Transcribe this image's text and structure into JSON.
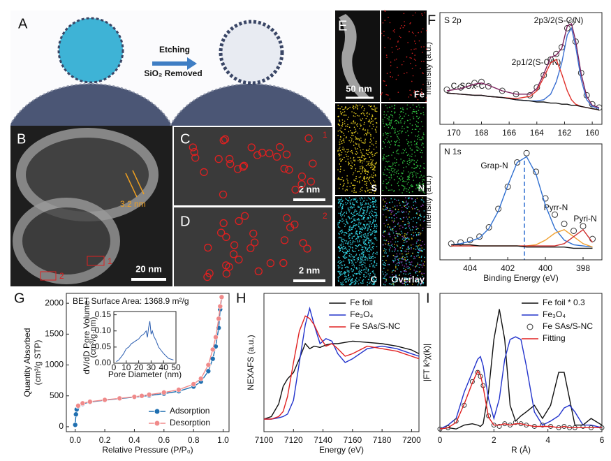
{
  "panels": {
    "A": {
      "label": "A",
      "arrow_top": "Etching",
      "arrow_bottom": "SiO₂ Removed"
    },
    "B": {
      "label": "B",
      "measure": "3.2 nm",
      "scale": "20 nm",
      "region_1": "1",
      "region_2": "2"
    },
    "C": {
      "label": "C",
      "region": "1",
      "scale": "2 nm"
    },
    "D": {
      "label": "D",
      "region": "2",
      "scale": "2 nm"
    },
    "E": {
      "label": "E",
      "scale": "50 nm",
      "maps": [
        "Fe",
        "S",
        "N",
        "C",
        "Overlay"
      ]
    }
  },
  "chart_data": [
    {
      "type": "line",
      "panel_label": "F",
      "y_label": "Intensity (a.u.)",
      "annotations": [
        "S 2p",
        "2p3/2(S-C/N)",
        "2p1/2(S-C/N)",
        "C-SOx-C"
      ],
      "xlim": [
        171,
        159.3
      ],
      "xticks": [
        170,
        168,
        166,
        164,
        162,
        160
      ],
      "ylim": [
        0,
        1
      ],
      "x": [
        170.5,
        169.5,
        168.5,
        168,
        167.5,
        166.5,
        165.5,
        164.5,
        164,
        163.5,
        163,
        162.6,
        162.2,
        161.8,
        161.5,
        161.2,
        160.8,
        160.4,
        160,
        159.5
      ],
      "series": [
        {
          "color": "#333333",
          "style": "open-markers",
          "values": [
            0.31,
            0.33,
            0.37,
            0.38,
            0.34,
            0.3,
            0.27,
            0.26,
            0.33,
            0.44,
            0.58,
            0.63,
            0.69,
            0.86,
            0.91,
            0.74,
            0.46,
            0.26,
            0.18,
            0.15
          ]
        },
        {
          "color": "#7a1f5a",
          "style": "line",
          "values": [
            0.3,
            0.32,
            0.36,
            0.37,
            0.35,
            0.3,
            0.27,
            0.27,
            0.32,
            0.45,
            0.6,
            0.62,
            0.68,
            0.88,
            0.9,
            0.75,
            0.45,
            0.25,
            0.17,
            0.15
          ]
        },
        {
          "color": "#3b6fd1",
          "style": "line",
          "values": [
            0.28,
            0.27,
            0.26,
            0.26,
            0.25,
            0.24,
            0.22,
            0.21,
            0.21,
            0.22,
            0.27,
            0.38,
            0.55,
            0.8,
            0.86,
            0.7,
            0.4,
            0.22,
            0.16,
            0.14
          ]
        },
        {
          "color": "#e0302a",
          "style": "line",
          "values": [
            0.28,
            0.27,
            0.26,
            0.26,
            0.25,
            0.24,
            0.23,
            0.25,
            0.3,
            0.42,
            0.55,
            0.58,
            0.45,
            0.3,
            0.22,
            0.18,
            0.16,
            0.15,
            0.14,
            0.13
          ]
        },
        {
          "color": "#111111",
          "style": "line",
          "values": [
            0.28,
            0.27,
            0.26,
            0.26,
            0.25,
            0.24,
            0.22,
            0.21,
            0.2,
            0.2,
            0.19,
            0.19,
            0.18,
            0.18,
            0.17,
            0.17,
            0.16,
            0.15,
            0.14,
            0.13
          ]
        }
      ]
    },
    {
      "type": "line",
      "y_label": "Intensity (a.u.)",
      "x_label": "Binding Energy (eV)",
      "annotations": [
        "N 1s",
        "Grap-N",
        "Pyrr-N",
        "Pyri-N"
      ],
      "xlim": [
        405.6,
        397
      ],
      "xticks": [
        404,
        402,
        400,
        398
      ],
      "ylim": [
        0,
        1
      ],
      "x": [
        405,
        404.5,
        404,
        403.5,
        403,
        402.5,
        402,
        401.5,
        401,
        400.5,
        400,
        399.5,
        399,
        398.5,
        398,
        397.5
      ],
      "series": [
        {
          "color": "#333333",
          "style": "open-markers",
          "values": [
            0.14,
            0.15,
            0.17,
            0.2,
            0.28,
            0.44,
            0.63,
            0.84,
            0.92,
            0.76,
            0.53,
            0.39,
            0.31,
            0.25,
            0.29,
            0.18
          ]
        },
        {
          "color": "#2f6fd0",
          "style": "line",
          "values": [
            0.13,
            0.14,
            0.16,
            0.19,
            0.27,
            0.42,
            0.64,
            0.84,
            0.89,
            0.74,
            0.47,
            0.27,
            0.17,
            0.13,
            0.12,
            0.11
          ]
        },
        {
          "color": "#f0a030",
          "style": "line",
          "values": [
            0.12,
            0.12,
            0.12,
            0.12,
            0.12,
            0.12,
            0.12,
            0.12,
            0.12,
            0.13,
            0.17,
            0.23,
            0.26,
            0.2,
            0.14,
            0.11
          ]
        },
        {
          "color": "#d03030",
          "style": "line",
          "values": [
            0.12,
            0.12,
            0.12,
            0.12,
            0.12,
            0.12,
            0.12,
            0.12,
            0.12,
            0.12,
            0.12,
            0.12,
            0.14,
            0.2,
            0.26,
            0.15
          ]
        },
        {
          "color": "#111111",
          "style": "line",
          "values": [
            0.13,
            0.13,
            0.13,
            0.12,
            0.12,
            0.12,
            0.12,
            0.12,
            0.11,
            0.11,
            0.11,
            0.11,
            0.11,
            0.1,
            0.1,
            0.1
          ]
        }
      ]
    },
    {
      "type": "line",
      "panel_label": "G",
      "y_label": [
        "Quantity Absorbed",
        "(cm³/g STP)"
      ],
      "x_label": "Relative Pressure (P/P₀)",
      "annotations": [
        "BET Surface Area: 1368.9 m²/g"
      ],
      "legend": "lower right",
      "xlim": [
        -0.06,
        1.04
      ],
      "xticks": [
        {
          "value": 0,
          "label": "0.0"
        },
        0.2,
        0.4,
        0.6,
        0.8,
        {
          "value": 1,
          "label": "1.0"
        }
      ],
      "ylim": [
        -80,
        2160
      ],
      "yticks": [
        0,
        500,
        1000,
        1500,
        2000
      ],
      "series": [
        {
          "name": "Adsorption",
          "color": "#1f6fb0",
          "style": "line+markers",
          "x": [
            0,
            0.005,
            0.01,
            0.02,
            0.05,
            0.1,
            0.2,
            0.3,
            0.4,
            0.5,
            0.6,
            0.7,
            0.8,
            0.85,
            0.9,
            0.93,
            0.95,
            0.97,
            0.98,
            0.99
          ],
          "values": [
            30,
            200,
            280,
            330,
            370,
            400,
            430,
            455,
            480,
            505,
            535,
            575,
            650,
            730,
            900,
            1100,
            1300,
            1600,
            1900,
            2100
          ]
        },
        {
          "name": "Desorption",
          "color": "#f08a8a",
          "style": "line+markers",
          "x": [
            0.99,
            0.98,
            0.97,
            0.95,
            0.93,
            0.9,
            0.85,
            0.8,
            0.7,
            0.6,
            0.5,
            0.45,
            0.4,
            0.3,
            0.2,
            0.1,
            0.05,
            0.02
          ],
          "values": [
            2100,
            1950,
            1750,
            1450,
            1250,
            1000,
            780,
            690,
            600,
            555,
            520,
            500,
            485,
            460,
            435,
            405,
            380,
            340
          ]
        }
      ]
    },
    {
      "type": "line",
      "y_label": [
        "dV/dD Pore Volume",
        "(cm³/g·nm)"
      ],
      "x_label": "Pore Diameter (nm)",
      "xlim": [
        0,
        50
      ],
      "xticks": [
        0,
        10,
        20,
        30,
        40,
        50
      ],
      "ylim": [
        0,
        0.16
      ],
      "yticks": [
        {
          "value": 0,
          "label": "0.00"
        },
        0.05,
        {
          "value": 0.1,
          "label": "0.10"
        },
        0.15
      ],
      "x": [
        2,
        4,
        6,
        8,
        10,
        12,
        14,
        16,
        18,
        20,
        22,
        24,
        26,
        27,
        28,
        29,
        30,
        31,
        32,
        34,
        36,
        38,
        40,
        44,
        48
      ],
      "series": [
        {
          "color": "#2a5db0",
          "style": "line",
          "values": [
            0.005,
            0.01,
            0.02,
            0.03,
            0.045,
            0.05,
            0.06,
            0.065,
            0.07,
            0.075,
            0.085,
            0.09,
            0.1,
            0.08,
            0.11,
            0.13,
            0.09,
            0.1,
            0.085,
            0.07,
            0.05,
            0.04,
            0.03,
            0.015,
            0.01
          ]
        }
      ]
    },
    {
      "type": "line",
      "panel_label": "H",
      "y_label": "NEXAFS (a.u.)",
      "x_label": "Energy (eV)",
      "legend": "upper center",
      "xlim": [
        7100,
        7205
      ],
      "xticks": [
        7100,
        7120,
        7140,
        7160,
        7180,
        7200
      ],
      "ylim": [
        0,
        1.1
      ],
      "x": [
        7100,
        7105,
        7110,
        7113,
        7116,
        7120,
        7124,
        7128,
        7131,
        7134,
        7138,
        7142,
        7146,
        7150,
        7155,
        7160,
        7170,
        7180,
        7190,
        7200,
        7205
      ],
      "series": [
        {
          "name": "Fe foil",
          "color": "#111111",
          "style": "line",
          "values": [
            0.1,
            0.12,
            0.22,
            0.36,
            0.42,
            0.47,
            0.58,
            0.7,
            0.66,
            0.68,
            0.67,
            0.69,
            0.7,
            0.7,
            0.71,
            0.72,
            0.71,
            0.7,
            0.68,
            0.65,
            0.62
          ]
        },
        {
          "name": "Fe₃O₄",
          "color": "#2233cc",
          "style": "line",
          "values": [
            0.1,
            0.1,
            0.11,
            0.12,
            0.14,
            0.25,
            0.55,
            0.85,
            0.98,
            0.85,
            0.7,
            0.74,
            0.72,
            0.62,
            0.55,
            0.58,
            0.66,
            0.68,
            0.66,
            0.62,
            0.6
          ]
        },
        {
          "name": "Fe SAs/S-NC",
          "color": "#e02020",
          "style": "line",
          "values": [
            0.1,
            0.1,
            0.12,
            0.16,
            0.28,
            0.55,
            0.8,
            0.92,
            0.9,
            0.85,
            0.75,
            0.68,
            0.7,
            0.66,
            0.6,
            0.62,
            0.68,
            0.66,
            0.64,
            0.6,
            0.58
          ]
        }
      ]
    },
    {
      "type": "line",
      "panel_label": "I",
      "y_label": "|FT k³χ(k)|",
      "x_label": "R (Å)",
      "legend": "upper right",
      "xlim": [
        0,
        6
      ],
      "xticks": [
        0,
        2,
        4,
        6
      ],
      "ylim": [
        0,
        1.05
      ],
      "x": [
        0,
        0.3,
        0.6,
        0.9,
        1.2,
        1.4,
        1.5,
        1.6,
        1.8,
        2.0,
        2.2,
        2.4,
        2.6,
        2.8,
        3.0,
        3.2,
        3.5,
        3.8,
        4.1,
        4.4,
        4.6,
        4.8,
        5.0,
        5.3,
        5.6,
        6.0
      ],
      "series": [
        {
          "name": "Fe foil * 0.3",
          "color": "#111111",
          "style": "line",
          "values": [
            0.02,
            0.03,
            0.02,
            0.05,
            0.06,
            0.05,
            0.04,
            0.06,
            0.3,
            0.7,
            0.93,
            0.7,
            0.2,
            0.08,
            0.12,
            0.15,
            0.2,
            0.1,
            0.2,
            0.45,
            0.45,
            0.25,
            0.05,
            0.05,
            0.1,
            0.05
          ]
        },
        {
          "name": "Fe₃O₄",
          "color": "#2233cc",
          "style": "line",
          "values": [
            0.02,
            0.05,
            0.1,
            0.3,
            0.45,
            0.55,
            0.57,
            0.5,
            0.25,
            0.1,
            0.25,
            0.55,
            0.7,
            0.72,
            0.7,
            0.5,
            0.15,
            0.05,
            0.08,
            0.12,
            0.18,
            0.2,
            0.15,
            0.05,
            0.05,
            0.03
          ]
        },
        {
          "name": "Fe SAs/S-NC",
          "color": "#333333",
          "style": "open-markers",
          "values": [
            0.02,
            0.03,
            0.08,
            0.2,
            0.38,
            0.45,
            0.42,
            0.35,
            0.12,
            0.05,
            0.04,
            0.06,
            0.05,
            0.07,
            0.06,
            0.05,
            0.04,
            0.05,
            0.04,
            0.03,
            0.04,
            0.03,
            0.03,
            0.04,
            0.03,
            0.03
          ]
        },
        {
          "name": "Fitting",
          "color": "#e02020",
          "style": "line",
          "values": [
            0.02,
            0.03,
            0.07,
            0.21,
            0.37,
            0.46,
            0.43,
            0.34,
            0.11,
            0.05,
            0.05,
            0.06,
            0.05,
            0.06,
            0.06,
            0.05,
            0.04,
            0.04,
            0.04,
            0.03,
            0.04,
            0.03,
            0.03,
            0.03,
            0.03,
            0.03
          ]
        }
      ]
    }
  ]
}
